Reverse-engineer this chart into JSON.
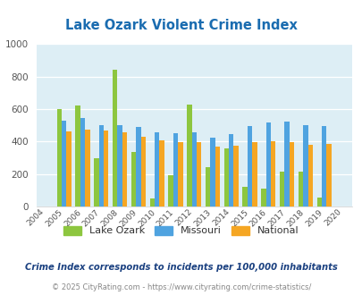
{
  "title": "Lake Ozark Violent Crime Index",
  "plot_years": [
    2005,
    2006,
    2007,
    2008,
    2009,
    2010,
    2011,
    2012,
    2013,
    2014,
    2015,
    2016,
    2017,
    2018,
    2019
  ],
  "lake_ozark": [
    600,
    620,
    295,
    845,
    335,
    50,
    195,
    630,
    245,
    360,
    120,
    110,
    215,
    215,
    55
  ],
  "missouri": [
    530,
    545,
    500,
    500,
    490,
    455,
    450,
    455,
    425,
    445,
    495,
    520,
    525,
    500,
    495
  ],
  "national": [
    465,
    475,
    470,
    455,
    430,
    405,
    395,
    395,
    370,
    375,
    395,
    400,
    395,
    380,
    385
  ],
  "bar_colors": {
    "lake_ozark": "#8dc63f",
    "missouri": "#4fa3e0",
    "national": "#f5a623"
  },
  "ylim": [
    0,
    1000
  ],
  "yticks": [
    0,
    200,
    400,
    600,
    800,
    1000
  ],
  "plot_bg": "#ddeef5",
  "title_color": "#1a6cb0",
  "footer_text1": "Crime Index corresponds to incidents per 100,000 inhabitants",
  "footer_text2": "© 2025 CityRating.com - https://www.cityrating.com/crime-statistics/",
  "legend_labels": [
    "Lake Ozark",
    "Missouri",
    "National"
  ],
  "xtick_labels": [
    "2004",
    "2005",
    "2006",
    "2007",
    "2008",
    "2009",
    "2010",
    "2011",
    "2012",
    "2013",
    "2014",
    "2015",
    "2016",
    "2017",
    "2018",
    "2019",
    "2020"
  ]
}
